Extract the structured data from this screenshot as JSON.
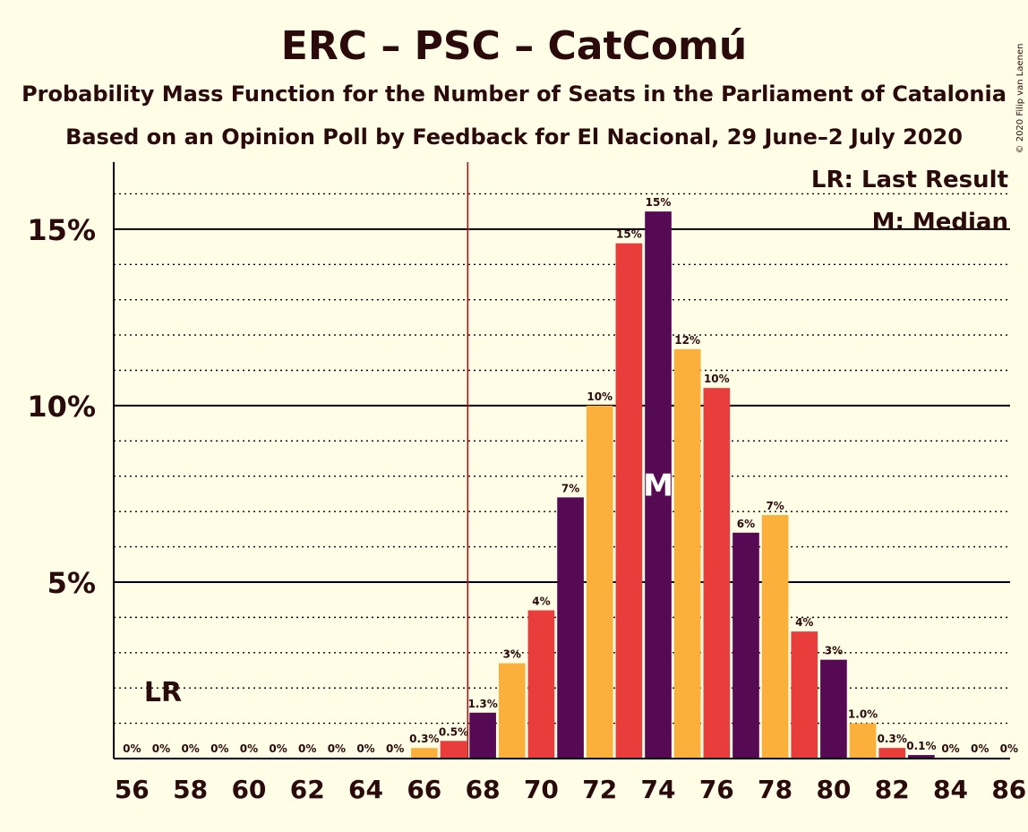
{
  "chart_data": {
    "type": "bar",
    "title": "ERC – PSC – CatComú",
    "subtitle": "Probability Mass Function for the Number of Seats in the Parliament of Catalonia",
    "subtitle2": "Based on an Opinion Poll by Feedback for El Nacional, 29 June–2 July 2020",
    "copyright": "© 2020 Filip van Laenen",
    "legend": {
      "lr": "LR: Last Result",
      "m": "M: Median"
    },
    "lr_marker": "LR",
    "median_marker": "M",
    "last_result_seat": 67.5,
    "median_seat": 74,
    "lr_label_seat": 57,
    "ylim": [
      0,
      16.9
    ],
    "yticks": [
      {
        "value": 5,
        "label": "5%"
      },
      {
        "value": 10,
        "label": "10%"
      },
      {
        "value": 15,
        "label": "15%"
      }
    ],
    "xticks": [
      56,
      58,
      60,
      62,
      64,
      66,
      68,
      70,
      72,
      74,
      76,
      78,
      80,
      82,
      84,
      86
    ],
    "xtick_labels": [
      "56",
      "58",
      "60",
      "62",
      "64",
      "66",
      "68",
      "70",
      "72",
      "74",
      "76",
      "78",
      "80",
      "82",
      "84",
      "86"
    ],
    "colors": {
      "dark": "#560a53",
      "orange": "#fbb03b",
      "red": "#e83d3a",
      "line": "#cc0000",
      "text": "#2a0a0a"
    },
    "bars": [
      {
        "seat": 56,
        "value": 0,
        "label": "0%"
      },
      {
        "seat": 57,
        "value": 0,
        "label": "0%"
      },
      {
        "seat": 58,
        "value": 0,
        "label": "0%"
      },
      {
        "seat": 59,
        "value": 0,
        "label": "0%"
      },
      {
        "seat": 60,
        "value": 0,
        "label": "0%"
      },
      {
        "seat": 61,
        "value": 0,
        "label": "0%"
      },
      {
        "seat": 62,
        "value": 0,
        "label": "0%"
      },
      {
        "seat": 63,
        "value": 0,
        "label": "0%"
      },
      {
        "seat": 64,
        "value": 0,
        "label": "0%"
      },
      {
        "seat": 65,
        "value": 0,
        "label": "0%"
      },
      {
        "seat": 66,
        "value": 0.3,
        "label": "0.3%"
      },
      {
        "seat": 67,
        "value": 0.5,
        "label": "0.5%"
      },
      {
        "seat": 68,
        "value": 1.3,
        "label": "1.3%"
      },
      {
        "seat": 69,
        "value": 2.7,
        "label": "3%"
      },
      {
        "seat": 70,
        "value": 4.2,
        "label": "4%"
      },
      {
        "seat": 71,
        "value": 7.4,
        "label": "7%"
      },
      {
        "seat": 72,
        "value": 10.0,
        "label": "10%"
      },
      {
        "seat": 73,
        "value": 14.6,
        "label": "15%"
      },
      {
        "seat": 74,
        "value": 15.5,
        "label": "15%"
      },
      {
        "seat": 75,
        "value": 11.6,
        "label": "12%"
      },
      {
        "seat": 76,
        "value": 10.5,
        "label": "10%"
      },
      {
        "seat": 77,
        "value": 6.4,
        "label": "6%"
      },
      {
        "seat": 78,
        "value": 6.9,
        "label": "7%"
      },
      {
        "seat": 79,
        "value": 3.6,
        "label": "4%"
      },
      {
        "seat": 80,
        "value": 2.8,
        "label": "3%"
      },
      {
        "seat": 81,
        "value": 1.0,
        "label": "1.0%"
      },
      {
        "seat": 82,
        "value": 0.3,
        "label": "0.3%"
      },
      {
        "seat": 83,
        "value": 0.1,
        "label": "0.1%"
      },
      {
        "seat": 84,
        "value": 0,
        "label": "0%"
      },
      {
        "seat": 85,
        "value": 0,
        "label": "0%"
      },
      {
        "seat": 86,
        "value": 0,
        "label": "0%"
      }
    ]
  }
}
